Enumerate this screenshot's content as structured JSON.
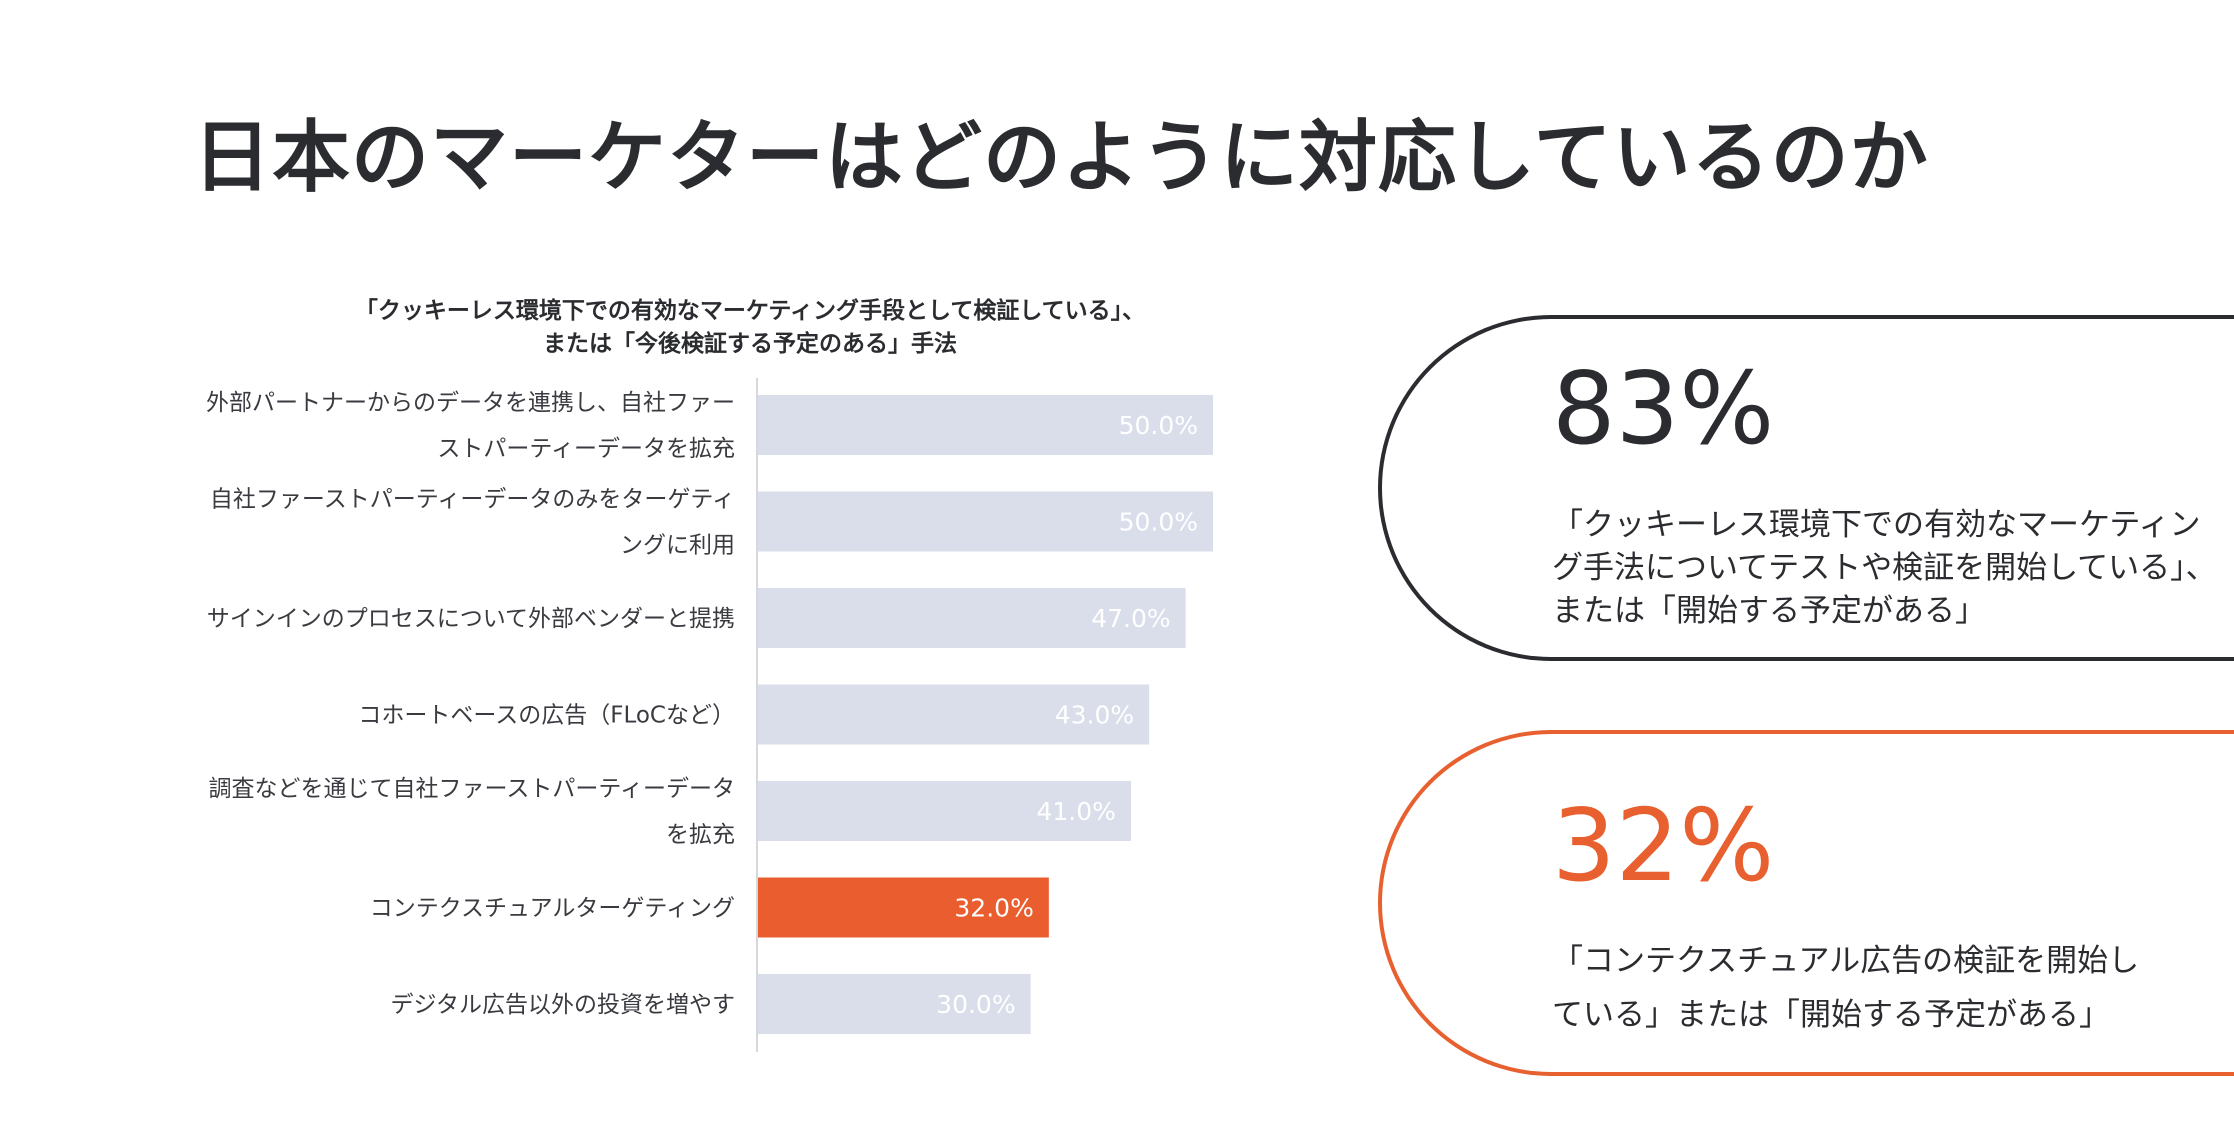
{
  "page": {
    "title": "日本のマーケターはどのように対応しているのか"
  },
  "chart_data": {
    "type": "bar",
    "orientation": "horizontal",
    "title_lines": [
      "「クッキーレス環境下での有効なマーケティング手段として検証している」、",
      "または「今後検証する予定のある」手法"
    ],
    "categories": [
      [
        "外部パートナーからのデータを連携し、自社ファー",
        "ストパーティーデータを拡充"
      ],
      [
        "自社ファーストパーティーデータのみをターゲティ",
        "ングに利用"
      ],
      [
        "サインインのプロセスについて外部ベンダーと提携"
      ],
      [
        "コホートベースの広告（FLoCなど）"
      ],
      [
        "調査などを通じて自社ファーストパーティーデータ",
        "を拡充"
      ],
      [
        "コンテクスチュアルターゲティング"
      ],
      [
        "デジタル広告以外の投資を増やす"
      ]
    ],
    "values": [
      50.0,
      50.0,
      47.0,
      43.0,
      41.0,
      32.0,
      30.0
    ],
    "value_labels": [
      "50.0%",
      "50.0%",
      "47.0%",
      "43.0%",
      "41.0%",
      "32.0%",
      "30.0%"
    ],
    "highlight_index": 5,
    "xlim": [
      0,
      50
    ],
    "grid": false,
    "colors": {
      "bar": "#dadeea",
      "highlight": "#e95d2e",
      "label_on_bar": "#ffffff",
      "axis": "#d6d8de"
    }
  },
  "stats": [
    {
      "value": "83%",
      "lines": [
        "「クッキーレス環境下での有効なマーケティン",
        "グ手法についてテストや検証を開始している」、",
        "または「開始する予定がある」"
      ],
      "color": "#2b2c30"
    },
    {
      "value": "32%",
      "lines": [
        "「コンテクスチュアル広告の検証を開始し",
        "ている」または「開始する予定がある」"
      ],
      "color": "#e8602f"
    }
  ]
}
